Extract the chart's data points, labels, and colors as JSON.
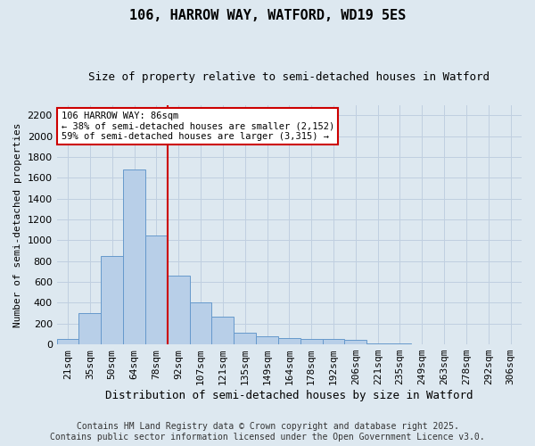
{
  "title": "106, HARROW WAY, WATFORD, WD19 5ES",
  "subtitle": "Size of property relative to semi-detached houses in Watford",
  "xlabel": "Distribution of semi-detached houses by size in Watford",
  "ylabel": "Number of semi-detached properties",
  "categories": [
    "21sqm",
    "35sqm",
    "50sqm",
    "64sqm",
    "78sqm",
    "92sqm",
    "107sqm",
    "121sqm",
    "135sqm",
    "149sqm",
    "164sqm",
    "178sqm",
    "192sqm",
    "206sqm",
    "221sqm",
    "235sqm",
    "249sqm",
    "263sqm",
    "278sqm",
    "292sqm",
    "306sqm"
  ],
  "values": [
    50,
    300,
    850,
    1680,
    1050,
    660,
    400,
    270,
    110,
    80,
    60,
    55,
    55,
    40,
    10,
    10,
    0,
    0,
    0,
    0,
    5
  ],
  "bar_color": "#b8cfe8",
  "bar_edge_color": "#6699cc",
  "grid_color": "#c0cfe0",
  "bg_color": "#dde8f0",
  "vline_color": "#cc0000",
  "annotation_text": "106 HARROW WAY: 86sqm\n← 38% of semi-detached houses are smaller (2,152)\n59% of semi-detached houses are larger (3,315) →",
  "annotation_box_color": "#ffffff",
  "annotation_box_edge": "#cc0000",
  "footer": "Contains HM Land Registry data © Crown copyright and database right 2025.\nContains public sector information licensed under the Open Government Licence v3.0.",
  "ylim": [
    0,
    2300
  ],
  "yticks": [
    0,
    200,
    400,
    600,
    800,
    1000,
    1200,
    1400,
    1600,
    1800,
    2000,
    2200
  ],
  "title_fontsize": 11,
  "subtitle_fontsize": 9,
  "ylabel_fontsize": 8,
  "xlabel_fontsize": 9,
  "tick_fontsize": 8,
  "footer_fontsize": 7
}
